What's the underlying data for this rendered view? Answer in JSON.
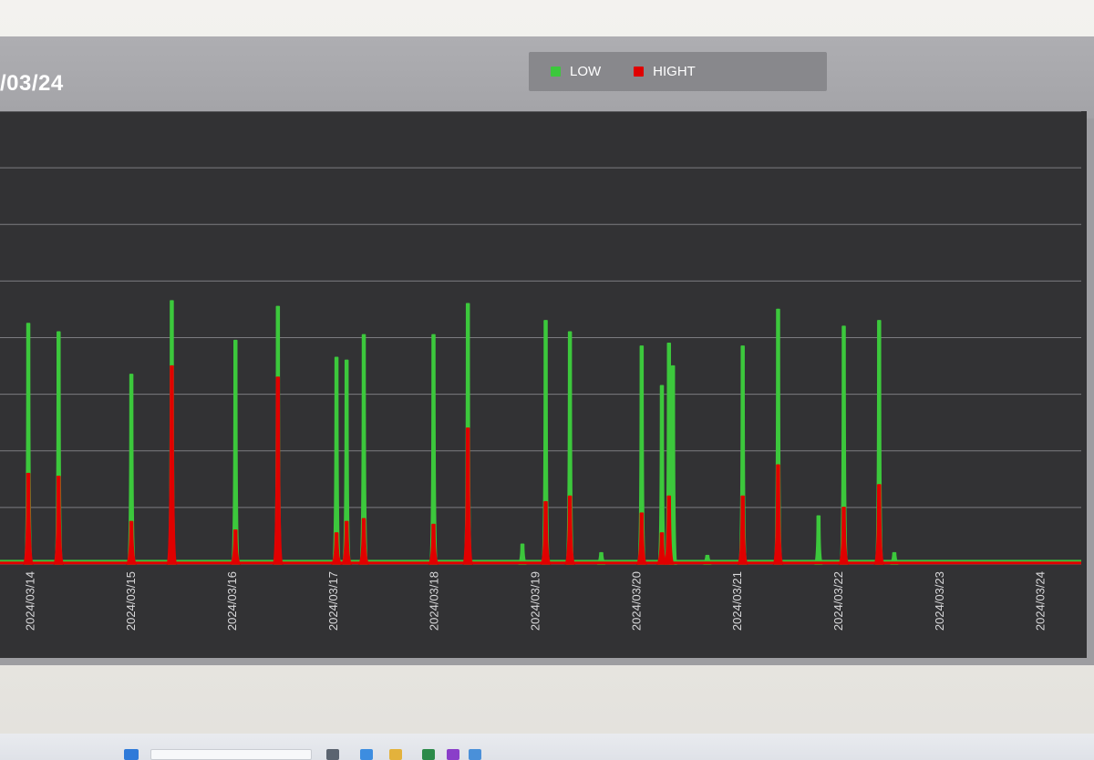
{
  "header": {
    "title": "/03/24"
  },
  "legend": {
    "items": [
      {
        "label": "LOW",
        "color": "#3cc83c"
      },
      {
        "label": "HIGHT",
        "color": "#e00000"
      }
    ]
  },
  "taskbar": {
    "icons": [
      "windows-start-icon",
      "search-box-icon",
      "app-icon",
      "app-icon",
      "app-icon",
      "app-icon",
      "app-icon",
      "app-icon"
    ]
  },
  "chart_data": {
    "type": "area",
    "title": "",
    "xlabel": "",
    "ylabel": "",
    "categories": [
      "2024/03/14",
      "2024/03/15",
      "2024/03/16",
      "2024/03/17",
      "2024/03/18",
      "2024/03/19",
      "2024/03/20",
      "2024/03/21",
      "2024/03/22",
      "2024/03/23",
      "2024/03/24"
    ],
    "xlim": [
      13.7,
      24.4
    ],
    "ylim": [
      0,
      8
    ],
    "grid": true,
    "legend_position": "top-right",
    "series": [
      {
        "name": "LOW",
        "color": "#3cc83c",
        "peaks": [
          {
            "x": 13.98,
            "y": 4.25
          },
          {
            "x": 14.28,
            "y": 4.1
          },
          {
            "x": 15.0,
            "y": 3.35
          },
          {
            "x": 15.4,
            "y": 4.65
          },
          {
            "x": 16.03,
            "y": 3.95
          },
          {
            "x": 16.45,
            "y": 4.55
          },
          {
            "x": 17.03,
            "y": 3.65
          },
          {
            "x": 17.13,
            "y": 3.6
          },
          {
            "x": 17.3,
            "y": 4.05
          },
          {
            "x": 17.99,
            "y": 4.05
          },
          {
            "x": 18.33,
            "y": 4.6
          },
          {
            "x": 18.87,
            "y": 0.35
          },
          {
            "x": 19.1,
            "y": 4.3
          },
          {
            "x": 19.34,
            "y": 4.1
          },
          {
            "x": 19.65,
            "y": 0.2
          },
          {
            "x": 20.05,
            "y": 3.85
          },
          {
            "x": 20.25,
            "y": 3.15
          },
          {
            "x": 20.32,
            "y": 3.9
          },
          {
            "x": 20.36,
            "y": 3.5
          },
          {
            "x": 20.7,
            "y": 0.15
          },
          {
            "x": 21.05,
            "y": 3.85
          },
          {
            "x": 21.4,
            "y": 4.5
          },
          {
            "x": 21.8,
            "y": 0.85
          },
          {
            "x": 22.05,
            "y": 4.2
          },
          {
            "x": 22.4,
            "y": 4.3
          },
          {
            "x": 22.55,
            "y": 0.2
          }
        ]
      },
      {
        "name": "HIGHT",
        "color": "#e00000",
        "peaks": [
          {
            "x": 13.98,
            "y": 1.6
          },
          {
            "x": 14.28,
            "y": 1.55
          },
          {
            "x": 15.0,
            "y": 0.75
          },
          {
            "x": 15.4,
            "y": 3.5
          },
          {
            "x": 16.03,
            "y": 0.6
          },
          {
            "x": 16.45,
            "y": 3.3
          },
          {
            "x": 17.03,
            "y": 0.55
          },
          {
            "x": 17.13,
            "y": 0.75
          },
          {
            "x": 17.3,
            "y": 0.8
          },
          {
            "x": 17.99,
            "y": 0.7
          },
          {
            "x": 18.33,
            "y": 2.4
          },
          {
            "x": 19.1,
            "y": 1.1
          },
          {
            "x": 19.34,
            "y": 1.2
          },
          {
            "x": 20.05,
            "y": 0.9
          },
          {
            "x": 20.25,
            "y": 0.55
          },
          {
            "x": 20.32,
            "y": 1.2
          },
          {
            "x": 21.05,
            "y": 1.2
          },
          {
            "x": 21.4,
            "y": 1.75
          },
          {
            "x": 22.05,
            "y": 1.0
          },
          {
            "x": 22.4,
            "y": 1.4
          }
        ]
      }
    ]
  }
}
